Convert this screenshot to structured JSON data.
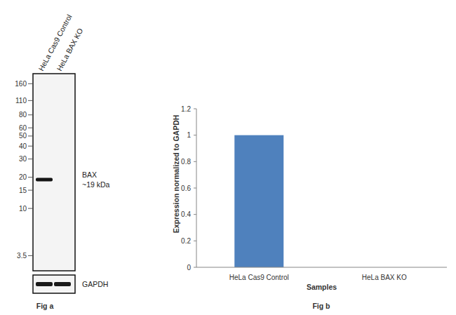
{
  "blot": {
    "lanes": [
      "HeLa Cas9 Control",
      "HeLa BAX KO"
    ],
    "markers": [
      160,
      110,
      80,
      60,
      50,
      40,
      30,
      20,
      15,
      10,
      3.5
    ],
    "kda_lim": [
      2.5,
      200
    ],
    "band_label": "BAX",
    "band_size_label": "~19 kDa",
    "band_kda": 19,
    "band_present": [
      true,
      false
    ],
    "loading_control": "GAPDH",
    "caption": "Fig a"
  },
  "chart_data": {
    "type": "bar",
    "categories": [
      "HeLa Cas9 Control",
      "HeLa BAX KO"
    ],
    "values": [
      1,
      0
    ],
    "color": "#4f81bd",
    "ylim": [
      0,
      1.2
    ],
    "yticks": [
      0,
      0.2,
      0.4,
      0.6,
      0.8,
      1,
      1.2
    ],
    "grid": false,
    "xlabel": "Samples",
    "ylabel": "Expression normalized to GAPDH",
    "caption": "Fig b"
  }
}
